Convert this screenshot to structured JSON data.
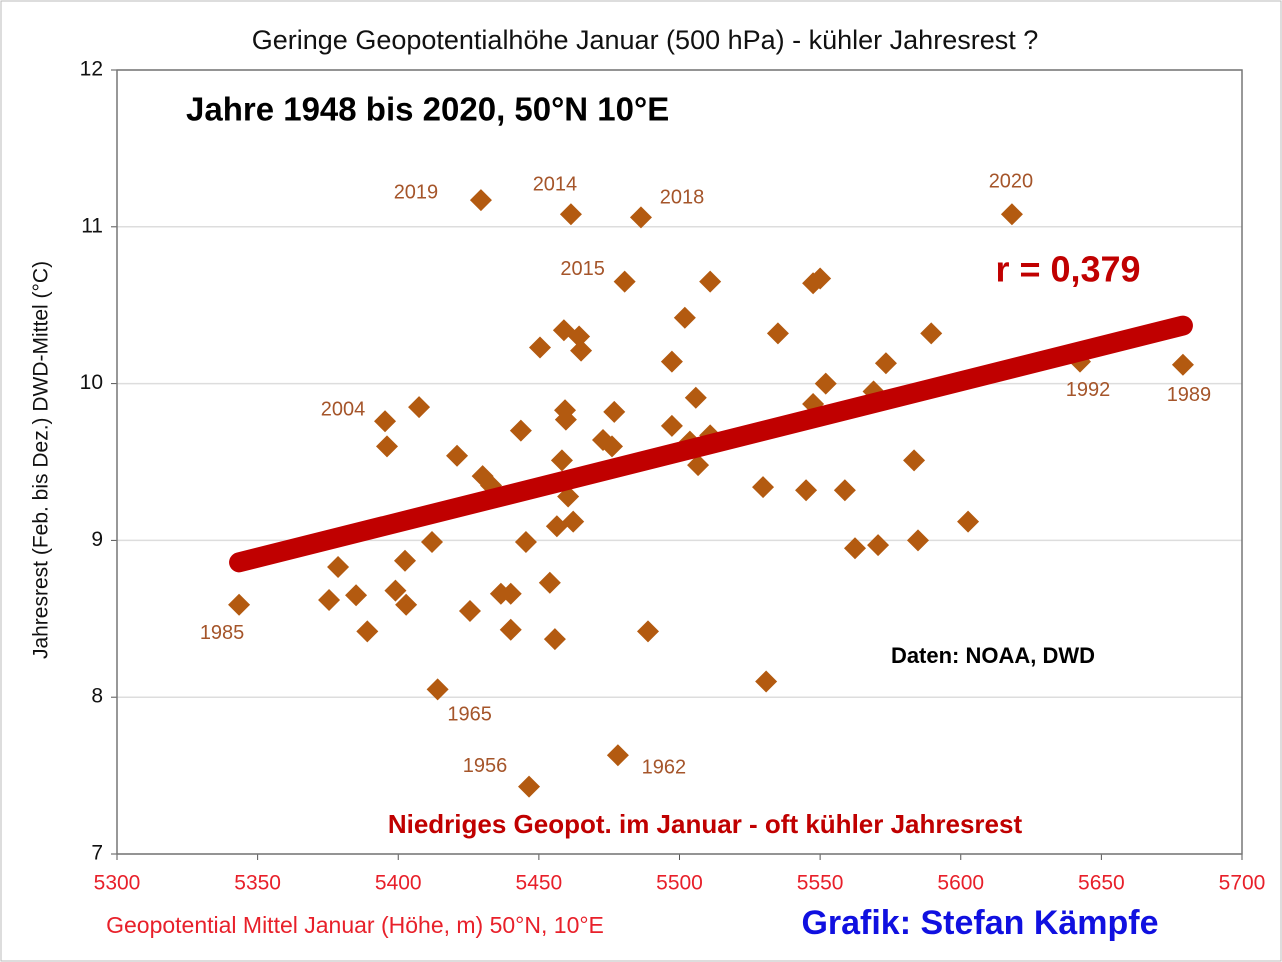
{
  "chart_data": {
    "type": "scatter",
    "title": "Geringe Geopotentialhöhe Januar (500 hPa) - kühler Jahresrest ?",
    "subtitle": "Jahre 1948 bis 2020, 50°N 10°E",
    "x_label": "Geopotential  Mittel Januar (Höhe, m) 50°N, 10°E",
    "y_label": "Jahresrest (Feb. bis Dez.) DWD-Mittel (°C)",
    "annotations": [
      "r = 0,379",
      "Daten: NOAA, DWD",
      "Niedriges Geopot. im Januar - oft kühler Jahresrest",
      "Grafik: Stefan Kämpfe"
    ],
    "xlim": [
      5300,
      5700
    ],
    "xticks": [
      5300,
      5350,
      5400,
      5450,
      5500,
      5550,
      5600,
      5650,
      5700
    ],
    "ylim": [
      7,
      12
    ],
    "yticks": [
      7,
      8,
      9,
      10,
      11,
      12
    ],
    "grid": true,
    "color": "#b35a10",
    "trend_color": "#c00000",
    "series": [
      {
        "x": [
          5343.4,
          5375.4,
          5378.6,
          5385,
          5389,
          5395.3,
          5396,
          5399,
          5402.4,
          5402.8,
          5407.4,
          5412,
          5414,
          5420.9,
          5425.5,
          5429.4,
          5430,
          5433,
          5436.5,
          5440,
          5440,
          5443.6,
          5445.4,
          5446.5,
          5450.4,
          5453.9,
          5455.7,
          5456.4,
          5458.2,
          5459.3,
          5459.6,
          5458.9,
          5460.4,
          5462.2,
          5461.4,
          5464.3,
          5465,
          5472.8,
          5476,
          5476.8,
          5478.1,
          5480.5,
          5486.3,
          5488.8,
          5497.3,
          5497.3,
          5501.9,
          5503.7,
          5505.8,
          5506.6,
          5510.9,
          5510.9,
          5529.7,
          5530.8,
          5535,
          5545,
          5547.5,
          5547.5,
          5550,
          5552,
          5558.8,
          5562.4,
          5569,
          5570.6,
          5573.4,
          5583.4,
          5584.8,
          5589.5,
          5602.6,
          5618.2,
          5642.4,
          5679
        ],
        "values": [
          8.59,
          8.62,
          8.83,
          8.65,
          8.42,
          9.76,
          9.6,
          8.68,
          8.87,
          8.59,
          9.85,
          8.99,
          8.05,
          9.54,
          8.55,
          11.17,
          9.41,
          9.35,
          8.66,
          8.66,
          8.43,
          9.7,
          8.99,
          7.43,
          10.23,
          8.73,
          8.37,
          9.09,
          9.51,
          9.83,
          9.77,
          10.34,
          9.28,
          9.12,
          11.08,
          10.3,
          10.21,
          9.64,
          9.6,
          9.82,
          7.63,
          10.65,
          11.06,
          8.42,
          10.14,
          9.73,
          10.42,
          9.63,
          9.91,
          9.48,
          9.67,
          10.65,
          9.34,
          8.1,
          10.32,
          9.32,
          9.87,
          10.64,
          10.67,
          10,
          9.32,
          8.95,
          9.95,
          8.97,
          10.13,
          9.51,
          9,
          10.32,
          9.12,
          11.08,
          10.14,
          10.12
        ],
        "point_labels": [
          "1985",
          null,
          null,
          null,
          null,
          "2004",
          null,
          null,
          null,
          null,
          null,
          null,
          "1965",
          null,
          null,
          "2019",
          null,
          null,
          null,
          null,
          null,
          null,
          null,
          "1956",
          null,
          null,
          null,
          null,
          null,
          null,
          null,
          null,
          null,
          null,
          "2014",
          null,
          null,
          null,
          null,
          null,
          "1962",
          "2015",
          "2018",
          null,
          null,
          null,
          null,
          null,
          null,
          null,
          null,
          null,
          null,
          null,
          null,
          null,
          null,
          null,
          null,
          null,
          null,
          null,
          null,
          null,
          null,
          null,
          null,
          null,
          null,
          "2020",
          "1992",
          "1989"
        ]
      }
    ],
    "trendline": {
      "x": [
        5343.4,
        5679
      ],
      "values": [
        8.86,
        10.37
      ]
    }
  }
}
